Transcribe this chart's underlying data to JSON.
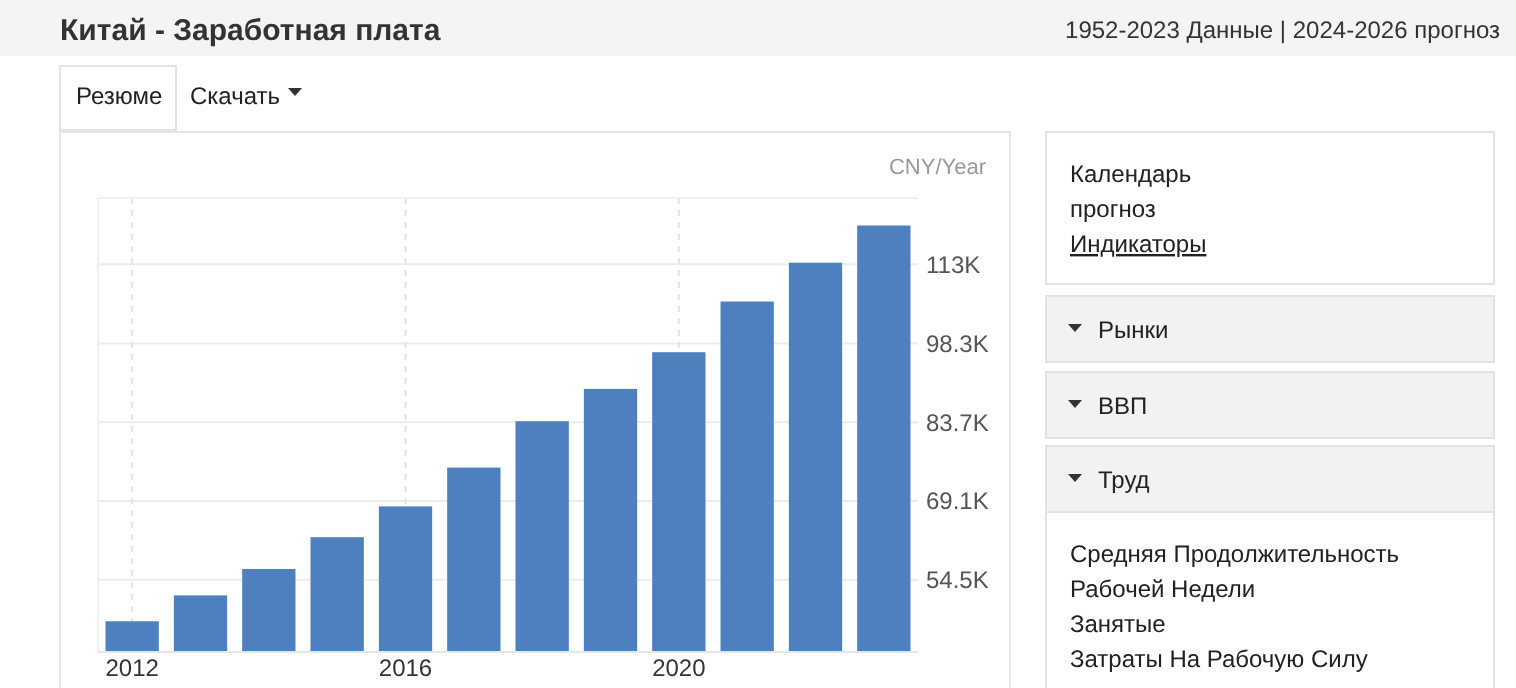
{
  "chart_data": [
    {
      "type": "other",
      "title": "Китай - Заработная плата",
      "subtitle": "1952-2023 Данные | 2024-2026 прогноз"
    },
    {
      "type": "other",
      "annotations": [
        "Резюме",
        "Скачать"
      ]
    },
    {
      "type": "bar",
      "ylabel": "CNY/Year",
      "categories": [
        "2012",
        null,
        null,
        null,
        "2016",
        null,
        null,
        null,
        "2020",
        null,
        null,
        null
      ],
      "values": [
        46800,
        51600,
        56500,
        62400,
        68100,
        75300,
        83900,
        89900,
        96700,
        106100,
        113300,
        120200
      ],
      "color": "#4e7fbf",
      "ylim": [
        41100,
        125300
      ],
      "yticks": [
        {
          "value": 54500,
          "label": "54.5K"
        },
        {
          "value": 69100,
          "label": "69.1K"
        },
        {
          "value": 83700,
          "label": "83.7K"
        },
        {
          "value": 98300,
          "label": "98.3K"
        },
        {
          "value": 113000,
          "label": "113K"
        }
      ],
      "grid": true
    },
    {
      "type": "other",
      "annotations": [
        "Календарь",
        "прогноз",
        "Индикаторы"
      ]
    },
    {
      "type": "other",
      "title": "Рынки"
    },
    {
      "type": "other",
      "title": "ВВП"
    },
    {
      "type": "other",
      "title": "Труд",
      "annotations": [
        "Средняя Продолжительность",
        "Рабочей Недели",
        "Занятые",
        "Затраты На Рабочую Силу"
      ]
    }
  ]
}
